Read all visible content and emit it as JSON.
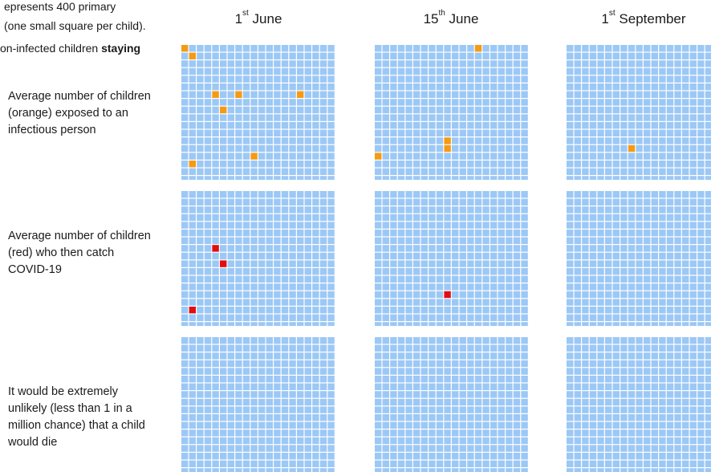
{
  "intro": {
    "line1": "epresents 400 primary",
    "line2": "(one small square per child).",
    "line3_prefix": "on-infected children ",
    "line3_bold": "staying"
  },
  "columns": [
    {
      "day": "1",
      "suffix": "st",
      "month": " June"
    },
    {
      "day": "15",
      "suffix": "th",
      "month": " June"
    },
    {
      "day": "1",
      "suffix": "st",
      "month": " September"
    }
  ],
  "rows": [
    {
      "label": "Average number of children (orange) exposed to an infectious person"
    },
    {
      "label": "Average number of children (red) who then catch COVID-19"
    },
    {
      "label": "It would be extremely unlikely (less than 1 in a million chance) that a child would die"
    }
  ],
  "colors": {
    "square": "#9cc8f5",
    "exposed": "#f59a14",
    "infected": "#e00d12"
  },
  "chart_data": {
    "type": "heatmap",
    "squares_per_grid": 400,
    "grid_columns": 20,
    "grids": [
      {
        "row": 0,
        "col": 0,
        "highlight": "exposed",
        "count": 8,
        "cells": [
          [
            1,
            1
          ],
          [
            4,
            6
          ],
          [
            7,
            6
          ],
          [
            15,
            6
          ],
          [
            5,
            8
          ],
          [
            9,
            14
          ],
          [
            1,
            15
          ],
          [
            0,
            0
          ]
        ]
      },
      {
        "row": 0,
        "col": 1,
        "highlight": "exposed",
        "count": 4,
        "cells": [
          [
            13,
            0
          ],
          [
            9,
            12
          ],
          [
            9,
            13
          ],
          [
            0,
            14
          ]
        ]
      },
      {
        "row": 0,
        "col": 2,
        "highlight": "exposed",
        "count": 1,
        "cells": [
          [
            8,
            13
          ]
        ]
      },
      {
        "row": 1,
        "col": 0,
        "highlight": "infected",
        "count": 3,
        "cells": [
          [
            4,
            7
          ],
          [
            5,
            9
          ],
          [
            1,
            15
          ]
        ]
      },
      {
        "row": 1,
        "col": 1,
        "highlight": "infected",
        "count": 1,
        "cells": [
          [
            9,
            13
          ]
        ]
      },
      {
        "row": 1,
        "col": 2,
        "highlight": "infected",
        "count": 0,
        "cells": []
      },
      {
        "row": 2,
        "col": 0,
        "highlight": "none",
        "count": 0,
        "cells": []
      },
      {
        "row": 2,
        "col": 1,
        "highlight": "none",
        "count": 0,
        "cells": []
      },
      {
        "row": 2,
        "col": 2,
        "highlight": "none",
        "count": 0,
        "cells": []
      }
    ]
  }
}
